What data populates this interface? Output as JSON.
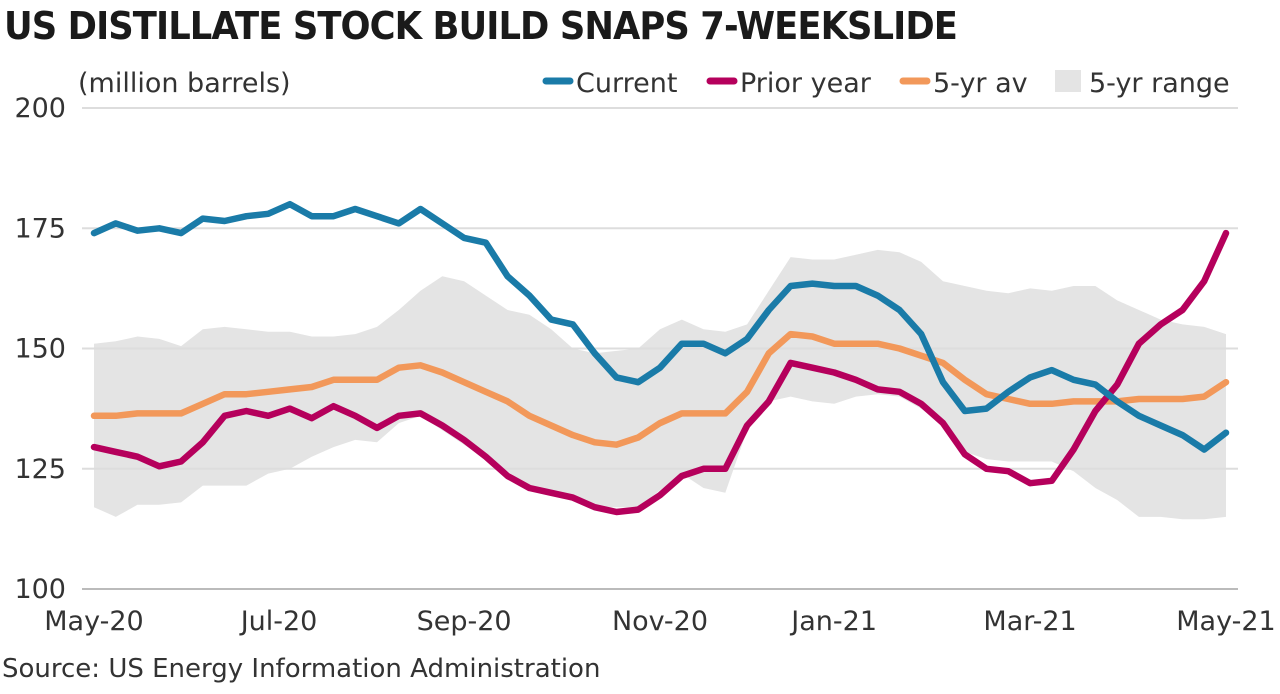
{
  "title": "US DISTILLATE STOCK BUILD SNAPS 7-WEEKSLIDE",
  "source": "Source: US Energy Information Administration",
  "chart_data": {
    "type": "line",
    "ylabel": "(million barrels)",
    "ylim": [
      100,
      200
    ],
    "yticks": [
      100,
      125,
      150,
      175,
      200
    ],
    "xtick_labels": [
      "May-20",
      "Jul-20",
      "Sep-20",
      "Nov-20",
      "Jan-21",
      "Mar-21",
      "May-21"
    ],
    "xtick_weeks": [
      0,
      8.5,
      17,
      26,
      34,
      43,
      52
    ],
    "grid": "horizontal",
    "legend_placement": "top",
    "legend": [
      {
        "label": "Current",
        "key": "current"
      },
      {
        "label": "Prior year",
        "key": "prior"
      },
      {
        "label": "5-yr av",
        "key": "avg"
      },
      {
        "label": "5-yr range",
        "key": "range"
      }
    ],
    "colors": {
      "current": "#1a7ba8",
      "prior": "#b5005c",
      "avg": "#f2985a",
      "range": "#e4e4e4",
      "grid": "#dddddd"
    },
    "series": {
      "current": [
        174,
        176,
        174.5,
        175,
        174,
        177,
        176.5,
        177.5,
        178,
        180,
        177.5,
        177.5,
        179,
        177.5,
        176,
        179,
        176,
        173,
        172,
        165,
        161,
        156,
        155,
        149,
        144,
        143,
        146,
        151,
        151,
        149,
        152,
        158,
        163,
        163.5,
        163,
        163,
        161,
        158,
        153,
        143,
        137,
        137.5,
        141,
        144,
        145.5,
        143.5,
        142.5,
        139,
        136,
        134,
        132,
        129,
        132.5
      ],
      "prior": [
        129.5,
        128.5,
        127.5,
        125.5,
        126.5,
        130.5,
        136,
        137,
        136,
        137.5,
        135.5,
        138,
        136,
        133.5,
        136,
        136.5,
        134,
        131,
        127.5,
        123.5,
        121,
        120,
        119,
        117,
        116,
        116.5,
        119.5,
        123.5,
        125,
        125,
        134,
        139,
        147,
        146,
        145,
        143.5,
        141.5,
        141,
        138.5,
        134.5,
        128,
        125,
        124.5,
        122,
        122.5,
        129,
        137,
        142.5,
        151,
        155,
        158,
        164,
        174
      ],
      "avg": [
        136,
        136,
        136.5,
        136.5,
        136.5,
        138.5,
        140.5,
        140.5,
        141,
        141.5,
        142,
        143.5,
        143.5,
        143.5,
        146,
        146.5,
        145,
        143,
        141,
        139,
        136,
        134,
        132,
        130.5,
        130,
        131.5,
        134.5,
        136.5,
        136.5,
        136.5,
        141,
        149,
        153,
        152.5,
        151,
        151,
        151,
        150,
        148.5,
        147,
        143.5,
        140.5,
        139.5,
        138.5,
        138.5,
        139,
        139,
        139,
        139.5,
        139.5,
        139.5,
        140,
        143
      ],
      "range_upper": [
        151,
        151.5,
        152.5,
        152,
        150.5,
        154,
        154.5,
        154,
        153.5,
        153.5,
        152.5,
        152.5,
        153,
        154.5,
        158,
        162,
        165,
        164,
        161,
        158,
        157,
        154,
        150,
        149,
        149.5,
        150,
        154,
        156,
        154,
        153.5,
        155,
        162,
        169,
        168.5,
        168.5,
        169.5,
        170.5,
        170,
        168,
        164,
        163,
        162,
        161.5,
        162.5,
        162,
        163,
        163,
        160,
        158,
        156,
        155,
        154.5,
        153
      ],
      "range_lower": [
        117,
        115,
        117.5,
        117.5,
        118,
        121.5,
        121.5,
        121.5,
        124,
        125,
        127.5,
        129.5,
        131,
        130.5,
        134.5,
        136,
        133,
        130,
        127,
        124.5,
        121,
        120.5,
        119.5,
        117,
        117,
        117,
        120.5,
        124,
        121,
        120,
        133,
        139,
        140,
        139,
        138.5,
        140,
        140.5,
        140,
        137.5,
        134,
        128.5,
        127,
        126.5,
        126.5,
        126.5,
        124.5,
        121,
        118.5,
        115,
        115,
        114.5,
        114.5,
        115
      ]
    }
  }
}
